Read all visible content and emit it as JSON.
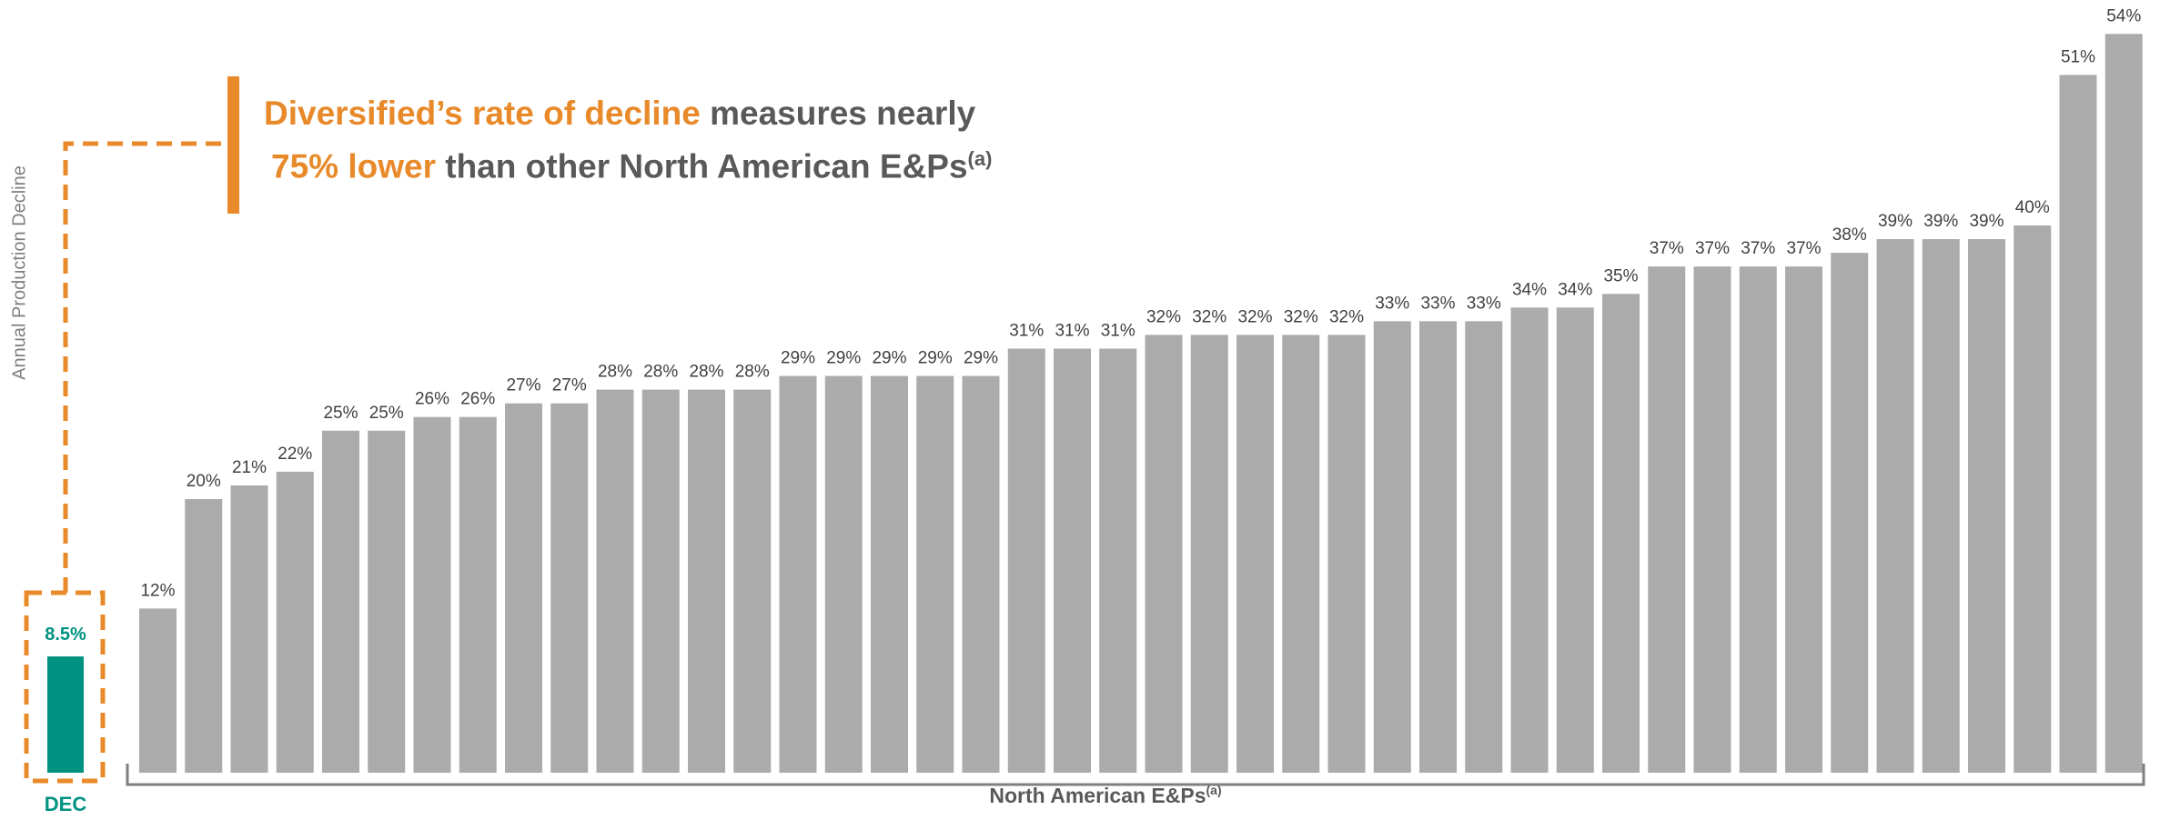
{
  "headline": {
    "part1_highlight": "Diversified’s rate of decline",
    "part1_rest": " measures nearly",
    "part2_highlight": "75% lower",
    "part2_rest": " than other North American E&Ps",
    "superscript": "(a)"
  },
  "colors": {
    "accent": "#E8892A",
    "dec": "#009281",
    "bars": "#ABABAB",
    "text": "#595959"
  },
  "chart_data": {
    "type": "bar",
    "ylabel": "Annual Production Decline",
    "xlabel": "North American E&Ps",
    "xlabel_sup": "(a)",
    "highlight": {
      "category": "DEC",
      "value": 8.5,
      "label": "8.5%"
    },
    "values": [
      12,
      20,
      21,
      22,
      25,
      25,
      26,
      26,
      27,
      27,
      28,
      28,
      28,
      28,
      29,
      29,
      29,
      29,
      29,
      31,
      31,
      31,
      32,
      32,
      32,
      32,
      32,
      33,
      33,
      33,
      34,
      34,
      35,
      37,
      37,
      37,
      37,
      38,
      39,
      39,
      39,
      40,
      51,
      54
    ],
    "labels": [
      "12%",
      "20%",
      "21%",
      "22%",
      "25%",
      "25%",
      "26%",
      "26%",
      "27%",
      "27%",
      "28%",
      "28%",
      "28%",
      "28%",
      "29%",
      "29%",
      "29%",
      "29%",
      "29%",
      "31%",
      "31%",
      "31%",
      "32%",
      "32%",
      "32%",
      "32%",
      "32%",
      "33%",
      "33%",
      "33%",
      "34%",
      "34%",
      "35%",
      "37%",
      "37%",
      "37%",
      "37%",
      "38%",
      "39%",
      "39%",
      "39%",
      "40%",
      "51%",
      "54%"
    ],
    "grid": false
  }
}
